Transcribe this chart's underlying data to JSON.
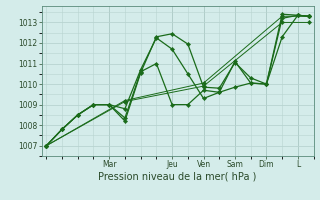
{
  "background_color": "#d4ecea",
  "grid_color": "#b8d4d0",
  "line_color": "#1a6b1a",
  "marker_color": "#1a6b1a",
  "xlabel": "Pression niveau de la mer( hPa )",
  "ylim": [
    1006.5,
    1013.8
  ],
  "yticks": [
    1007,
    1008,
    1009,
    1010,
    1011,
    1012,
    1013
  ],
  "day_labels": [
    "Mar",
    "Jeu",
    "Ven",
    "Sam",
    "Dim",
    "L"
  ],
  "day_positions": [
    2.0,
    4.0,
    5.0,
    6.0,
    7.0,
    8.0
  ],
  "xlim": [
    -0.15,
    8.5
  ],
  "series": [
    [
      0.0,
      1007.0,
      0.5,
      1007.8,
      1.0,
      1008.5,
      1.5,
      1009.0,
      2.0,
      1009.0,
      2.5,
      1008.2,
      3.0,
      1010.55,
      3.5,
      1012.3,
      4.0,
      1012.45,
      4.5,
      1011.95,
      5.0,
      1009.85,
      5.5,
      1009.8,
      6.0,
      1011.05,
      6.5,
      1010.3,
      7.0,
      1010.0,
      7.5,
      1013.4,
      8.0,
      1013.35,
      8.35,
      1013.3
    ],
    [
      0.0,
      1007.0,
      0.5,
      1007.8,
      1.0,
      1008.5,
      1.5,
      1009.0,
      2.0,
      1009.0,
      2.5,
      1008.8,
      3.0,
      1010.7,
      3.5,
      1012.25,
      4.0,
      1011.7,
      4.5,
      1010.5,
      5.0,
      1009.3,
      5.5,
      1009.6,
      6.0,
      1009.85,
      6.5,
      1010.05,
      7.0,
      1010.0,
      7.5,
      1013.2,
      8.0,
      1013.35,
      8.35,
      1013.3
    ],
    [
      0.0,
      1007.0,
      0.5,
      1007.8,
      1.0,
      1008.5,
      1.5,
      1009.0,
      2.0,
      1009.0,
      2.5,
      1008.35,
      3.0,
      1010.6,
      3.5,
      1011.0,
      4.0,
      1009.0,
      4.5,
      1009.0,
      5.0,
      1009.7,
      5.5,
      1009.6,
      6.0,
      1011.1,
      6.5,
      1010.05,
      7.0,
      1010.0,
      7.5,
      1012.3,
      8.0,
      1013.35,
      8.35,
      1013.3
    ],
    [
      0.0,
      1007.0,
      2.5,
      1009.2,
      5.0,
      1010.05,
      7.5,
      1013.3,
      8.35,
      1013.3
    ],
    [
      0.0,
      1007.0,
      2.5,
      1009.15,
      5.0,
      1009.9,
      7.5,
      1013.0,
      8.35,
      1013.0
    ]
  ],
  "ylabel_fontsize": 5.5,
  "xlabel_fontsize": 7.0,
  "tick_labelsize": 5.5
}
